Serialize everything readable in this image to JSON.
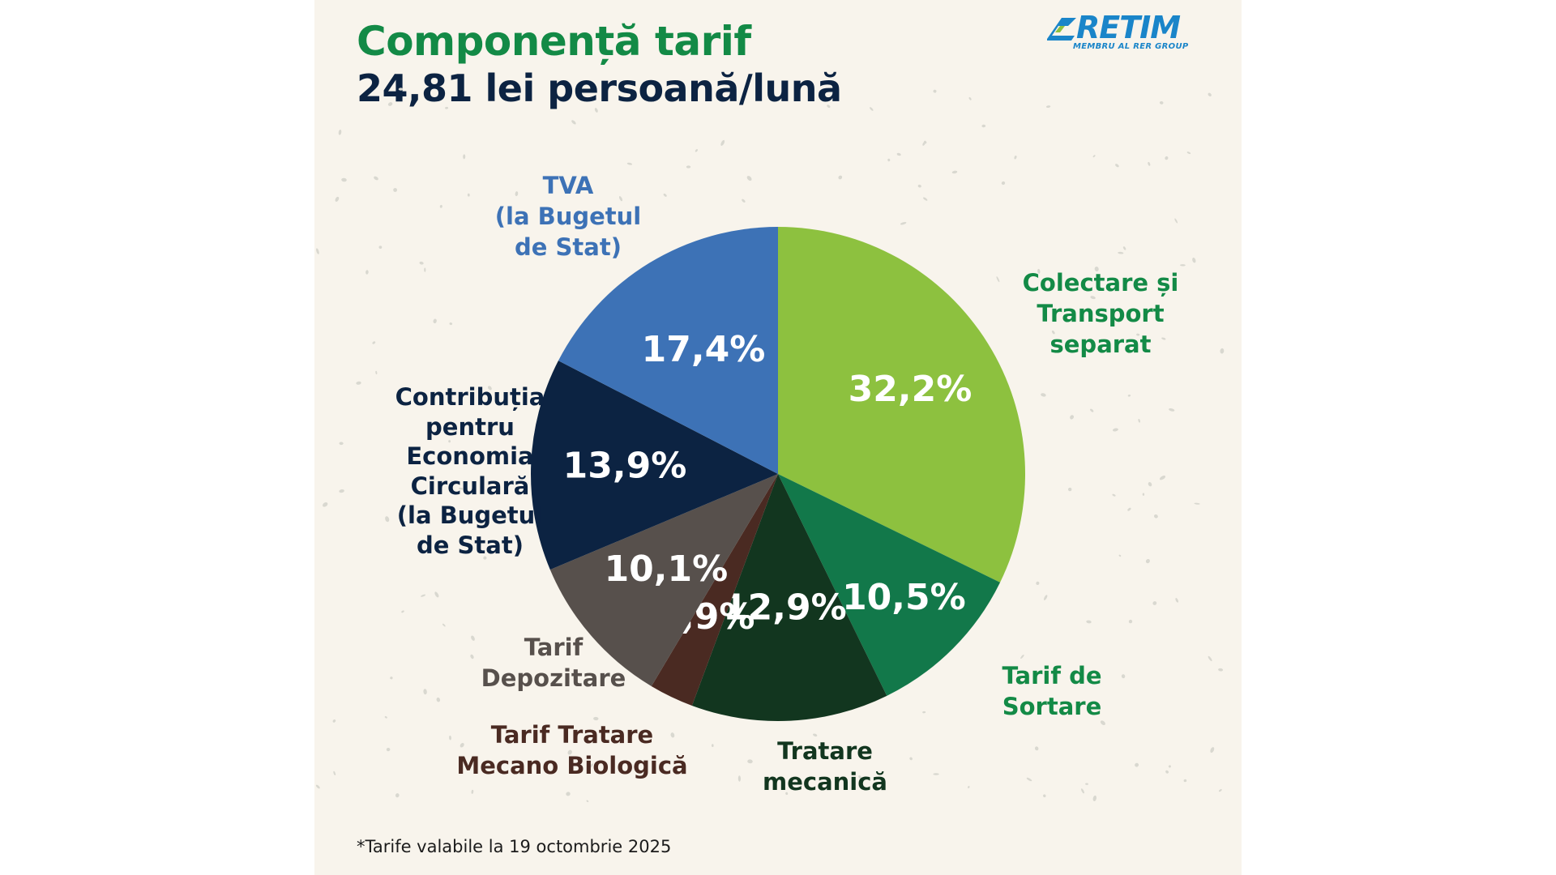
{
  "header": {
    "title": "Componență tarif",
    "subtitle": "24,81 lei persoană/lună"
  },
  "logo": {
    "text": "RETIM",
    "tagline": "MEMBRU AL RER GROUP"
  },
  "footnote": "*Tarife valabile la 19 octombrie 2025",
  "chart_data": {
    "type": "pie",
    "start_angle_deg": 0,
    "direction": "clockwise",
    "slices": [
      {
        "value": 32.2,
        "value_label": "32,2%",
        "name": "Colectare și\nTransport\nseparat",
        "color": "#8dc13f",
        "name_color": "#138a46"
      },
      {
        "value": 10.5,
        "value_label": "10,5%",
        "name": "Tarif de\nSortare",
        "color": "#12784a",
        "name_color": "#138a46"
      },
      {
        "value": 12.9,
        "value_label": "12,9%",
        "name": "Tratare\nmecanică",
        "color": "#12361f",
        "name_color": "#12361f"
      },
      {
        "value": 2.9,
        "value_label": "2,9%",
        "name": "Tarif Tratare\nMecano Biologică",
        "color": "#4a2a22",
        "name_color": "#4a2a22"
      },
      {
        "value": 10.1,
        "value_label": "10,1%",
        "name": "Tarif\nDepozitare",
        "color": "#57504c",
        "name_color": "#57504c"
      },
      {
        "value": 13.9,
        "value_label": "13,9%",
        "name": "Contribuția\npentru\nEconomia\nCirculară\n(la Bugetul\nde Stat)",
        "color": "#0c2342",
        "name_color": "#0c2342"
      },
      {
        "value": 17.4,
        "value_label": "17,4%",
        "name": "TVA\n(la Bugetul\nde Stat)",
        "color": "#3d72b6",
        "name_color": "#3d72b6"
      }
    ]
  }
}
